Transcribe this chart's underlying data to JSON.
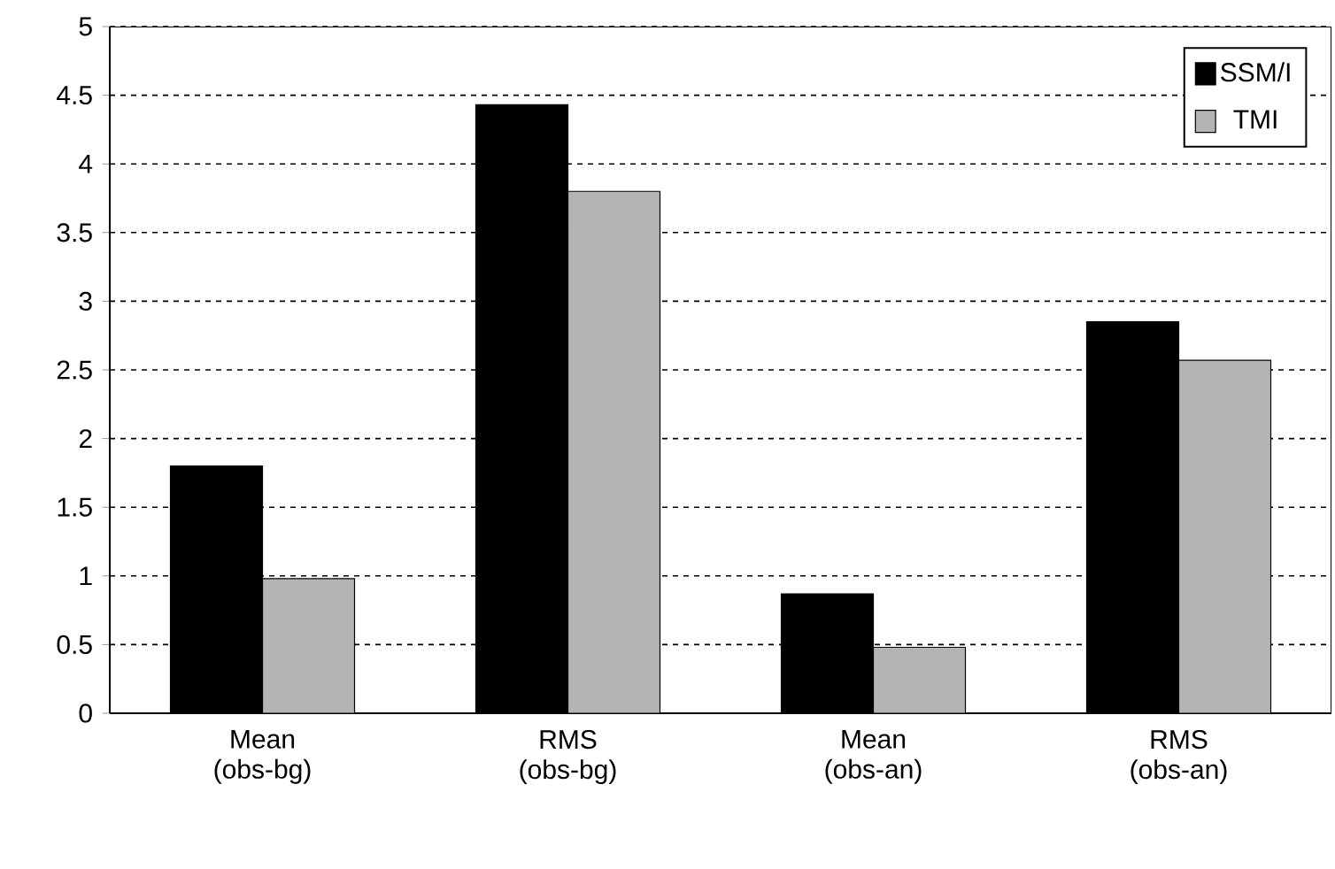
{
  "chart_data": {
    "type": "bar",
    "categories": [
      "Mean (obs-bg)",
      "RMS (obs-bg)",
      "Mean (obs-an)",
      "RMS (obs-an)"
    ],
    "series": [
      {
        "name": "SSM/I",
        "color": "#000000",
        "values": [
          1.8,
          4.43,
          0.87,
          2.85
        ]
      },
      {
        "name": "TMI",
        "color": "#b4b4b4",
        "values": [
          0.98,
          3.8,
          0.48,
          2.57
        ]
      }
    ],
    "ylim": [
      0,
      5
    ],
    "yticks": [
      0,
      0.5,
      1,
      1.5,
      2,
      2.5,
      3,
      3.5,
      4,
      4.5,
      5
    ],
    "grid": "y",
    "legend": "top right"
  }
}
